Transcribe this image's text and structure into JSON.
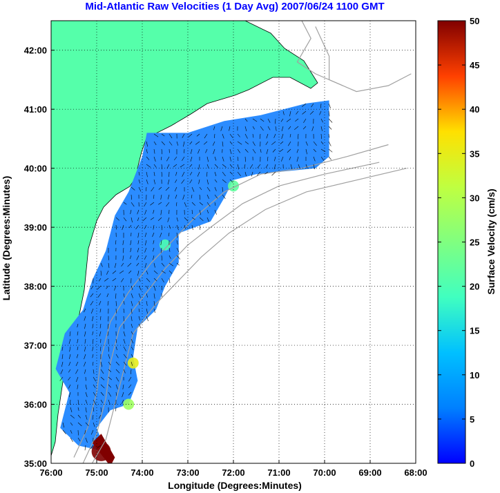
{
  "chart_data": {
    "type": "heatmap",
    "title": "Mid-Atlantic Raw Velocities (1 Day Avg) 2007/06/24 1100 GMT",
    "xlabel": "Longitude (Degrees:Minutes)",
    "ylabel": "Latitude (Degrees:Minutes)",
    "x_ticks": [
      "76:00",
      "75:00",
      "74:00",
      "73:00",
      "72:00",
      "71:00",
      "70:00",
      "69:00",
      "68:00"
    ],
    "y_ticks": [
      "35:00",
      "36:00",
      "37:00",
      "38:00",
      "39:00",
      "40:00",
      "41:00",
      "42:00"
    ],
    "xlim": [
      -76,
      -68
    ],
    "ylim": [
      35,
      42.5
    ],
    "grid": true,
    "colorbar": {
      "label": "Surface Velocity (cm/s)",
      "ticks": [
        "0",
        "5",
        "10",
        "15",
        "20",
        "25",
        "30",
        "35",
        "40",
        "45",
        "50"
      ],
      "range": [
        0,
        50
      ],
      "colormap": "jet"
    },
    "field": {
      "predominant_speed_cms": 8,
      "description_values": [
        {
          "lon": -74.8,
          "lat": 38.5,
          "speed": 8
        },
        {
          "lon": -72.5,
          "lat": 39.8,
          "speed": 10
        },
        {
          "lon": -71.0,
          "lat": 40.4,
          "speed": 9
        },
        {
          "lon": -72.0,
          "lat": 39.7,
          "speed": 22
        },
        {
          "lon": -73.5,
          "lat": 38.7,
          "speed": 20
        },
        {
          "lon": -74.2,
          "lat": 36.7,
          "speed": 35
        },
        {
          "lon": -74.3,
          "lat": 36.0,
          "speed": 28
        },
        {
          "lon": -74.9,
          "lat": 35.2,
          "speed": 50
        }
      ]
    },
    "colors": {
      "land": "#55ffaa",
      "coast_unfilled": "#ffffff",
      "bathymetry": "#a0a0a0",
      "grid": "#000000",
      "title": "#0000ff",
      "low_speed": "#2b8cff",
      "max_speed": "#800000"
    }
  }
}
